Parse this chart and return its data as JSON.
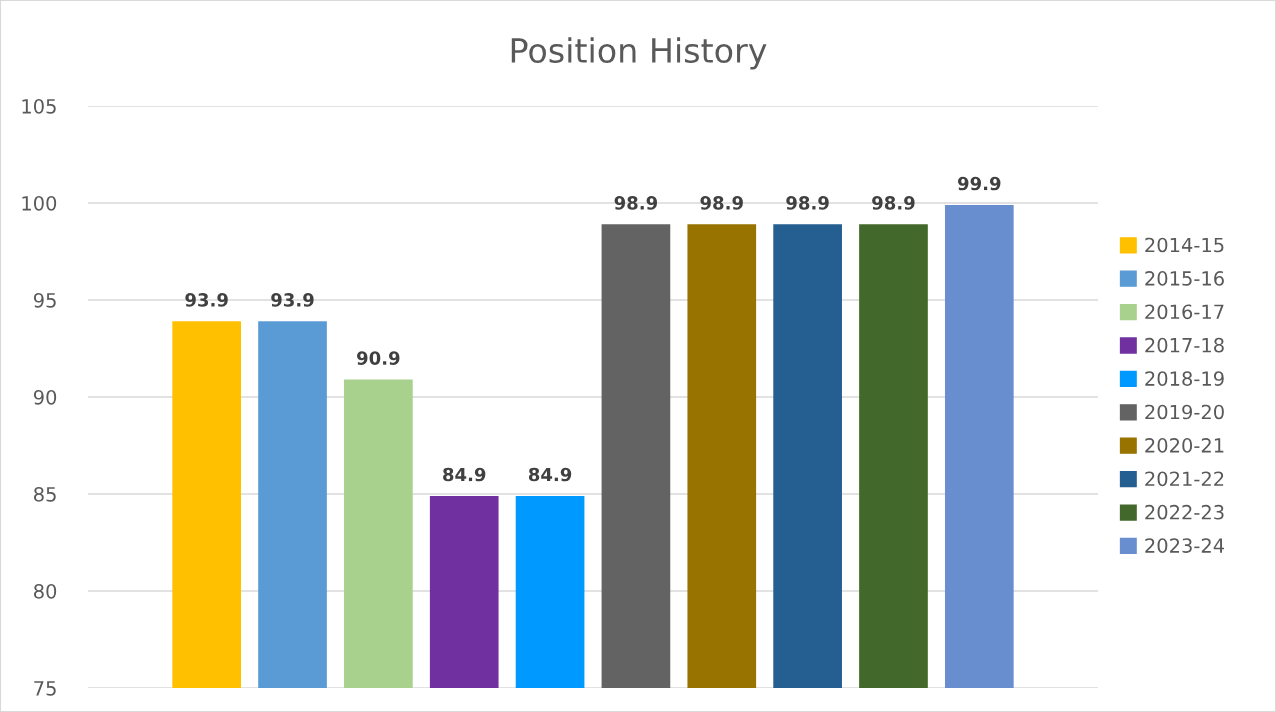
{
  "chart_data": {
    "type": "bar",
    "title": "Position History",
    "categories": [
      null
    ],
    "series": [
      {
        "name": "2014-15",
        "color": "#ffc000",
        "values": [
          93.9
        ]
      },
      {
        "name": "2015-16",
        "color": "#5b9bd5",
        "values": [
          93.9
        ]
      },
      {
        "name": "2016-17",
        "color": "#a9d18e",
        "values": [
          90.9
        ]
      },
      {
        "name": "2017-18",
        "color": "#7030a0",
        "values": [
          84.9
        ]
      },
      {
        "name": "2018-19",
        "color": "#0099ff",
        "values": [
          84.9
        ]
      },
      {
        "name": "2019-20",
        "color": "#636363",
        "values": [
          98.9
        ]
      },
      {
        "name": "2020-21",
        "color": "#997300",
        "values": [
          98.9
        ]
      },
      {
        "name": "2021-22",
        "color": "#255e91",
        "values": [
          98.9
        ]
      },
      {
        "name": "2022-23",
        "color": "#43682b",
        "values": [
          98.9
        ]
      },
      {
        "name": "2023-24",
        "color": "#698ed0",
        "values": [
          99.9
        ]
      }
    ],
    "ylim": [
      75,
      105
    ],
    "yticks": [
      75,
      80,
      85,
      90,
      95,
      100,
      105
    ],
    "grid": "y",
    "legend": "right",
    "data_labels": true
  }
}
